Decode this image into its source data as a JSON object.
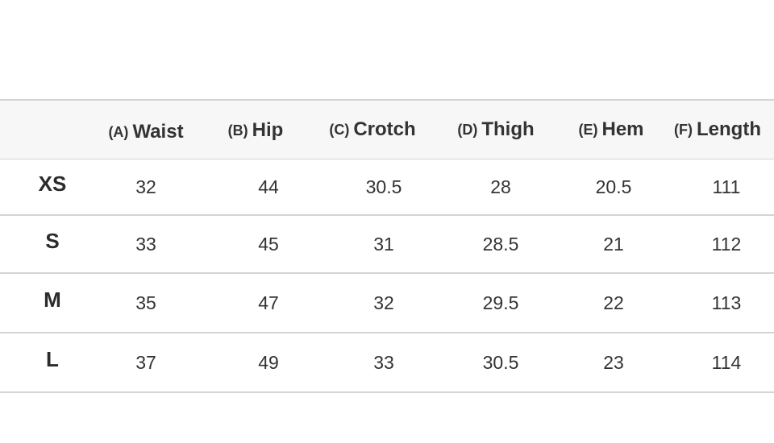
{
  "columns": [
    {
      "letter": "(A)",
      "name": "Waist"
    },
    {
      "letter": "(B)",
      "name": "Hip"
    },
    {
      "letter": "(C)",
      "name": "Crotch"
    },
    {
      "letter": "(D)",
      "name": "Thigh"
    },
    {
      "letter": "(E)",
      "name": "Hem"
    },
    {
      "letter": "(F)",
      "name": "Length"
    }
  ],
  "rows": [
    {
      "size": "XS",
      "values": [
        "32",
        "44",
        "30.5",
        "28",
        "20.5",
        "111"
      ]
    },
    {
      "size": "S",
      "values": [
        "33",
        "45",
        "31",
        "28.5",
        "21",
        "112"
      ]
    },
    {
      "size": "M",
      "values": [
        "35",
        "47",
        "32",
        "29.5",
        "22",
        "113"
      ]
    },
    {
      "size": "L",
      "values": [
        "37",
        "49",
        "33",
        "30.5",
        "23",
        "114"
      ]
    }
  ],
  "colors": {
    "header_bg": "#f7f7f7",
    "border": "#d4d4d4",
    "text": "#333333"
  }
}
